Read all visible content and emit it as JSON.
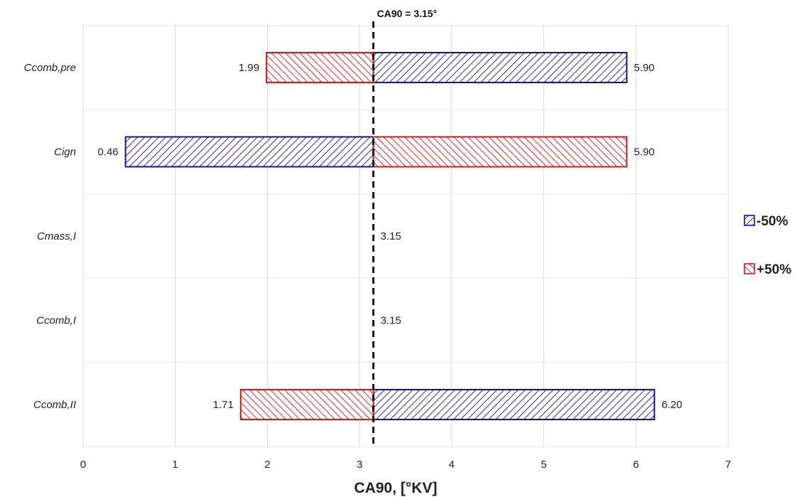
{
  "chart_data": {
    "type": "bar",
    "orientation": "horizontal",
    "title": "",
    "xlabel": "CA90, [°KV]",
    "ylabel": "",
    "xlim": [
      0,
      7
    ],
    "xticks": [
      0,
      1,
      2,
      3,
      4,
      5,
      6,
      7
    ],
    "grid": true,
    "legend_position": "right",
    "baseline": {
      "value": 3.15,
      "label": "CA90 = 3.15°"
    },
    "categories": [
      "Ccomb,pre",
      "Cign",
      "Cmass,I",
      "Ccomb,I",
      "Ccomb,II"
    ],
    "series": [
      {
        "name": "-50%",
        "color": "#1a0fa8",
        "hatch": "forward-diagonal",
        "values": [
          5.9,
          0.46,
          3.15,
          3.15,
          6.2
        ]
      },
      {
        "name": "+50%",
        "color": "#e01414",
        "hatch": "backward-diagonal",
        "values": [
          1.99,
          5.9,
          3.15,
          3.15,
          1.71
        ]
      }
    ],
    "value_labels": [
      [
        {
          "text": "5.90",
          "value": 5.9
        },
        {
          "text": "1.99",
          "value": 1.99
        }
      ],
      [
        {
          "text": "0.46",
          "value": 0.46
        },
        {
          "text": "5.90",
          "value": 5.9
        }
      ],
      [
        {
          "text": "3.15",
          "value": 3.15
        }
      ],
      [
        {
          "text": "3.15",
          "value": 3.15
        }
      ],
      [
        {
          "text": "6.20",
          "value": 6.2
        },
        {
          "text": "1.71",
          "value": 1.71
        }
      ]
    ]
  }
}
